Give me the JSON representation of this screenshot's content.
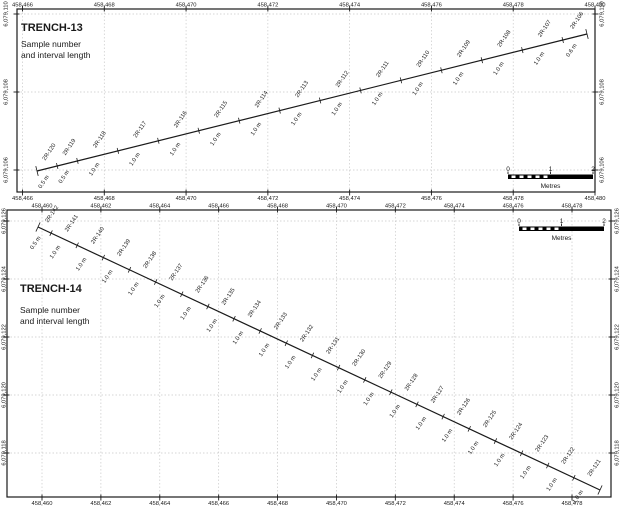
{
  "figure": {
    "background": "#ffffff",
    "ink_color": "#1a1a1a",
    "grid_color": "#c9c9c9"
  },
  "panels": [
    {
      "id": "trench-13",
      "title": "TRENCH-13",
      "subtitle_line1": "Sample number",
      "subtitle_line2": "and interval length",
      "x_ticks": [
        "458,466",
        "458,468",
        "458,470",
        "458,472",
        "458,474",
        "458,476",
        "458,478",
        "458,480"
      ],
      "y_ticks": [
        "6,079,110",
        "6,079,108",
        "6,079,106"
      ],
      "scalebar": {
        "labels": [
          "0",
          "1",
          "2"
        ],
        "caption": "Metres"
      },
      "samples": [
        {
          "label": "2R-120",
          "interval_label": "0.5 m",
          "interval_m": 0.5
        },
        {
          "label": "2R-119",
          "interval_label": "0.5 m",
          "interval_m": 0.5
        },
        {
          "label": "2R-118",
          "interval_label": "1.0 m",
          "interval_m": 1.0
        },
        {
          "label": "2R-117",
          "interval_label": "1.0 m",
          "interval_m": 1.0
        },
        {
          "label": "2R-116",
          "interval_label": "1.0 m",
          "interval_m": 1.0
        },
        {
          "label": "2R-115",
          "interval_label": "1.0 m",
          "interval_m": 1.0
        },
        {
          "label": "2R-114",
          "interval_label": "1.0 m",
          "interval_m": 1.0
        },
        {
          "label": "2R-113",
          "interval_label": "1.0 m",
          "interval_m": 1.0
        },
        {
          "label": "2R-112",
          "interval_label": "1.0 m",
          "interval_m": 1.0
        },
        {
          "label": "2R-111",
          "interval_label": "1.0 m",
          "interval_m": 1.0
        },
        {
          "label": "2R-110",
          "interval_label": "1.0 m",
          "interval_m": 1.0
        },
        {
          "label": "2R-109",
          "interval_label": "1.0 m",
          "interval_m": 1.0
        },
        {
          "label": "2R-108",
          "interval_label": "1.0 m",
          "interval_m": 1.0
        },
        {
          "label": "2R-107",
          "interval_label": "1.0 m",
          "interval_m": 1.0
        },
        {
          "label": "2R-106",
          "interval_label": "0.6 m",
          "interval_m": 0.6
        }
      ]
    },
    {
      "id": "trench-14",
      "title": "TRENCH-14",
      "subtitle_line1": "Sample number",
      "subtitle_line2": "and interval length",
      "x_ticks": [
        "458,460",
        "458,462",
        "458,464",
        "458,466",
        "458,468",
        "458,470",
        "458,472",
        "458,474",
        "458,476",
        "458,478"
      ],
      "y_ticks": [
        "6,079,126",
        "6,079,124",
        "6,079,122",
        "6,079,120",
        "6,079,118"
      ],
      "scalebar": {
        "labels": [
          "0",
          "1",
          "2"
        ],
        "caption": "Metres"
      },
      "samples": [
        {
          "label": "2R-142",
          "interval_label": "0.5 m",
          "interval_m": 0.5
        },
        {
          "label": "2R-141",
          "interval_label": "1.0 m",
          "interval_m": 1.0
        },
        {
          "label": "2R-140",
          "interval_label": "1.0 m",
          "interval_m": 1.0
        },
        {
          "label": "2R-139",
          "interval_label": "1.0 m",
          "interval_m": 1.0
        },
        {
          "label": "2R-138",
          "interval_label": "1.0 m",
          "interval_m": 1.0
        },
        {
          "label": "2R-137",
          "interval_label": "1.0 m",
          "interval_m": 1.0
        },
        {
          "label": "2R-136",
          "interval_label": "1.0 m",
          "interval_m": 1.0
        },
        {
          "label": "2R-135",
          "interval_label": "1.0 m",
          "interval_m": 1.0
        },
        {
          "label": "2R-134",
          "interval_label": "1.0 m",
          "interval_m": 1.0
        },
        {
          "label": "2R-133",
          "interval_label": "1.0 m",
          "interval_m": 1.0
        },
        {
          "label": "2R-132",
          "interval_label": "1.0 m",
          "interval_m": 1.0
        },
        {
          "label": "2R-131",
          "interval_label": "1.0 m",
          "interval_m": 1.0
        },
        {
          "label": "2R-130",
          "interval_label": "1.0 m",
          "interval_m": 1.0
        },
        {
          "label": "2R-129",
          "interval_label": "1.0 m",
          "interval_m": 1.0
        },
        {
          "label": "2R-128",
          "interval_label": "1.0 m",
          "interval_m": 1.0
        },
        {
          "label": "2R-127",
          "interval_label": "1.0 m",
          "interval_m": 1.0
        },
        {
          "label": "2R-126",
          "interval_label": "1.0 m",
          "interval_m": 1.0
        },
        {
          "label": "2R-125",
          "interval_label": "1.0 m",
          "interval_m": 1.0
        },
        {
          "label": "2R-124",
          "interval_label": "1.0 m",
          "interval_m": 1.0
        },
        {
          "label": "2R-123",
          "interval_label": "1.0 m",
          "interval_m": 1.0
        },
        {
          "label": "2R-122",
          "interval_label": "1.0 m",
          "interval_m": 1.0
        },
        {
          "label": "2R-121",
          "interval_label": "1.0 m",
          "interval_m": 1.0
        }
      ]
    }
  ]
}
